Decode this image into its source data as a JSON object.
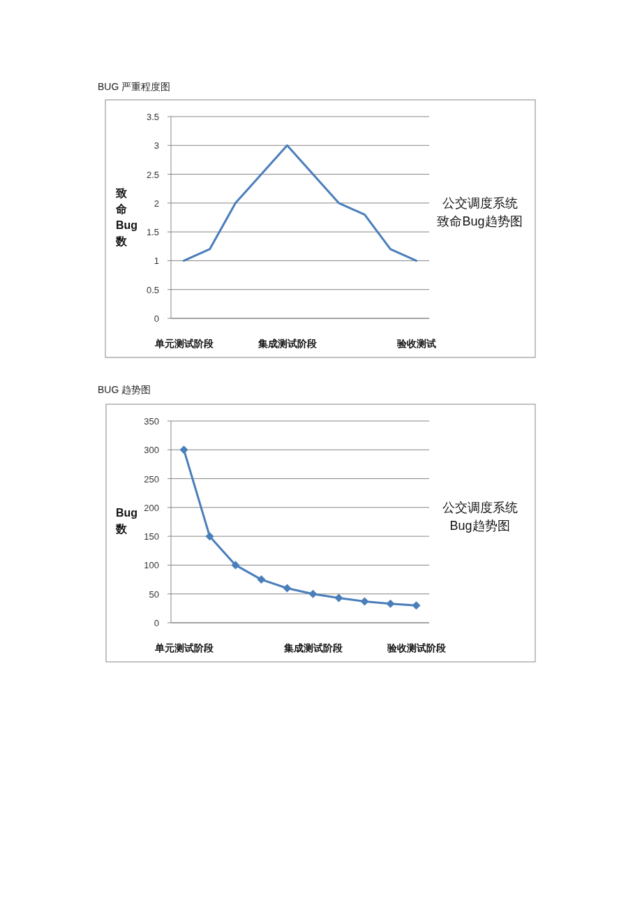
{
  "chart_data": [
    {
      "type": "line",
      "title": "BUG 严重程度图",
      "subtitle": "公交调度系统致命Bug趋势图",
      "ylabel": "致命Bug数",
      "categories": [
        "单元测试阶段",
        null,
        null,
        null,
        "集成测试阶段",
        null,
        null,
        null,
        null,
        "验收测试"
      ],
      "series": [
        {
          "color": "#4a7ebb",
          "values": [
            1,
            1.2,
            2,
            2.5,
            3,
            2.5,
            2,
            1.8,
            1.2,
            1
          ]
        }
      ],
      "ylim": [
        0,
        3.5
      ],
      "yticks": [
        0,
        0.5,
        1,
        1.5,
        2,
        2.5,
        3,
        3.5
      ],
      "grid": "y",
      "marker": "none"
    },
    {
      "type": "line",
      "title": "BUG 趋势图",
      "subtitle": "公交调度系统Bug趋势图",
      "ylabel": "Bug数",
      "categories": [
        "单元测试阶段",
        null,
        null,
        null,
        null,
        "集成测试阶段",
        null,
        null,
        null,
        "验收测试阶段"
      ],
      "series": [
        {
          "color": "#4a7ebb",
          "values": [
            300,
            150,
            100,
            75,
            60,
            50,
            43,
            37,
            33,
            30
          ]
        }
      ],
      "ylim": [
        0,
        350
      ],
      "yticks": [
        0,
        50,
        100,
        150,
        200,
        250,
        300,
        350
      ],
      "grid": "y",
      "marker": "diamond"
    }
  ]
}
